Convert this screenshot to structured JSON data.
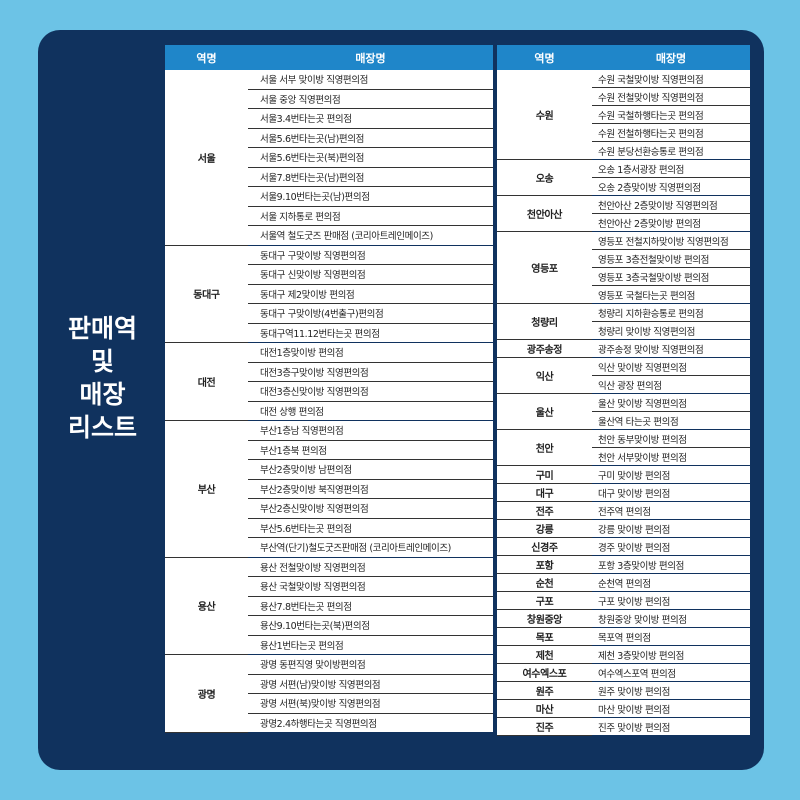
{
  "title": "판매역\n및\n매장\n리스트",
  "colors": {
    "background": "#6cc3e6",
    "panel": "#10325e",
    "header": "#1f86c9"
  },
  "headers": {
    "station": "역명",
    "store": "매장명"
  },
  "left_table": [
    {
      "station": "서울",
      "stores": [
        "서울 서부 맞이방 직영편의점",
        "서울 중앙 직영편의점",
        "서울3.4번타는곳 편의점",
        "서울5.6번타는곳(남)편의점",
        "서울5.6번타는곳(북)편의점",
        "서울7.8번타는곳(남)편의점",
        "서울9.10번타는곳(남)편의점",
        "서울 지하통로 편의점",
        "서울역 철도굿즈 판매점 (코리아트레인메이즈)"
      ]
    },
    {
      "station": "동대구",
      "stores": [
        "동대구 구맞이방 직영편의점",
        "동대구 신맞이방 직영편의점",
        "동대구 제2맞이방 편의점",
        "동대구 구맞이방(4번출구)편의점",
        "동대구역11.12번타는곳 편의점"
      ]
    },
    {
      "station": "대전",
      "stores": [
        "대전1층맞이방 편의점",
        "대전3층구맞이방 직영편의점",
        "대전3층신맞이방 직영편의점",
        "대전 상행 편의점"
      ]
    },
    {
      "station": "부산",
      "stores": [
        "부산1층남 직영편의점",
        "부산1층북 편의점",
        "부산2층맞이방 남편의점",
        "부산2층맞이방 북직영편의점",
        "부산2층신맞이방 직영편의점",
        "부산5.6번타는곳 편의점",
        "부산역(단기)철도굿즈판매점 (코리아트레인메이즈)"
      ]
    },
    {
      "station": "용산",
      "stores": [
        "용산 전철맞이방 직영편의점",
        "용산 국철맞이방 직영편의점",
        "용산7.8번타는곳 편의점",
        "용산9.10번타는곳(북)편의점",
        "용산1번타는곳 편의점"
      ]
    },
    {
      "station": "광명",
      "stores": [
        "광명 동편직영 맞이방편의점",
        "광명 서편(남)맞이방 직영편의점",
        "광명 서편(북)맞이방 직영편의점",
        "광명2.4하행타는곳 직영편의점"
      ]
    }
  ],
  "right_table": [
    {
      "station": "수원",
      "stores": [
        "수원 국철맞이방 직영편의점",
        "수원 전철맞이방 직영편의점",
        "수원 국철하행타는곳 편의점",
        "수원 전철하행타는곳 편의점",
        "수원 분당선환승통로 편의점"
      ]
    },
    {
      "station": "오송",
      "stores": [
        "오송 1층서광장 편의점",
        "오송 2층맞이방 직영편의점"
      ]
    },
    {
      "station": "천안아산",
      "stores": [
        "천안아산 2층맞이방 직영편의점",
        "천안아산 2층맞이방 편의점"
      ]
    },
    {
      "station": "영등포",
      "stores": [
        "영등포 전철지하맞이방 직영편의점",
        "영등포 3층전철맞이방 편의점",
        "영등포 3층국철맞이방 편의점",
        "영등포 국철타는곳 편의점"
      ]
    },
    {
      "station": "청량리",
      "stores": [
        "청량리 지하환승통로 편의점",
        "청량리 맞이방 직영편의점"
      ]
    },
    {
      "station": "광주송정",
      "stores": [
        "광주송정 맞이방 직영편의점"
      ]
    },
    {
      "station": "익산",
      "stores": [
        "익산 맞이방 직영편의점",
        "익산 광장 편의점"
      ]
    },
    {
      "station": "울산",
      "stores": [
        "울산 맞이방 직영편의점",
        "울산역 타는곳 편의점"
      ]
    },
    {
      "station": "천안",
      "stores": [
        "천안 동부맞이방 편의점",
        "천안 서부맞이방 편의점"
      ]
    },
    {
      "station": "구미",
      "stores": [
        "구미 맞이방 편의점"
      ]
    },
    {
      "station": "대구",
      "stores": [
        "대구 맞이방 편의점"
      ]
    },
    {
      "station": "전주",
      "stores": [
        "전주역 편의점"
      ]
    },
    {
      "station": "강릉",
      "stores": [
        "강릉 맞이방 편의점"
      ]
    },
    {
      "station": "신경주",
      "stores": [
        "경주 맞이방 편의점"
      ]
    },
    {
      "station": "포항",
      "stores": [
        "포항 3층맞이방 편의점"
      ]
    },
    {
      "station": "순천",
      "stores": [
        "순천역 편의점"
      ]
    },
    {
      "station": "구포",
      "stores": [
        "구포 맞이방 편의점"
      ]
    },
    {
      "station": "창원중앙",
      "stores": [
        "창원중앙 맞이방 편의점"
      ]
    },
    {
      "station": "목포",
      "stores": [
        "목포역 편의점"
      ]
    },
    {
      "station": "제천",
      "stores": [
        "제천 3층맞이방 편의점"
      ]
    },
    {
      "station": "여수엑스포",
      "stores": [
        "여수엑스포역 편의점"
      ]
    },
    {
      "station": "원주",
      "stores": [
        "원주 맞이방 편의점"
      ]
    },
    {
      "station": "마산",
      "stores": [
        "마산 맞이방 편의점"
      ]
    },
    {
      "station": "진주",
      "stores": [
        "진주 맞이방 편의점"
      ]
    }
  ]
}
